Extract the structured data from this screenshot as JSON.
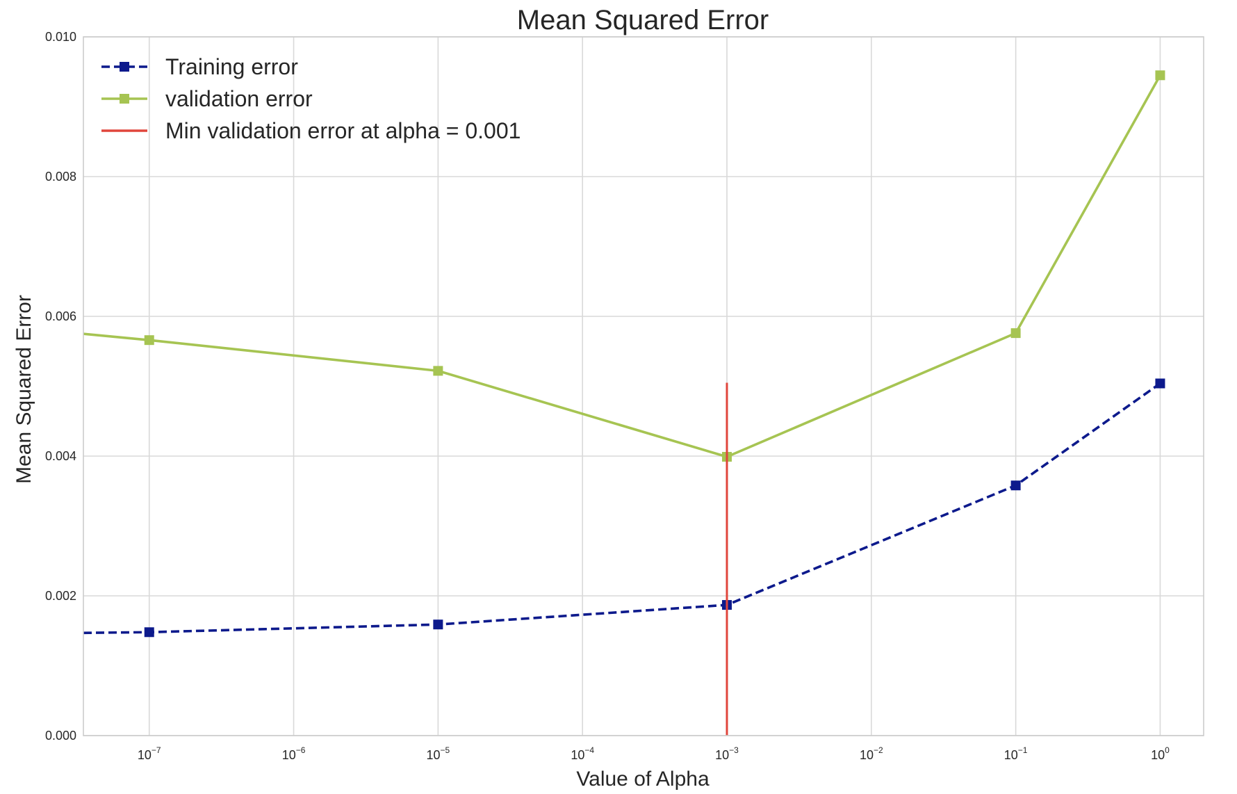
{
  "chart_data": {
    "type": "line",
    "title": "Mean Squared Error",
    "xlabel": "Value of Alpha",
    "ylabel": "Mean Squared Error",
    "xscale": "log",
    "xlim": [
      3.5e-08,
      2.0
    ],
    "ylim": [
      0.0,
      0.01
    ],
    "grid": true,
    "legend_position": "top-left",
    "x": [
      1e-07,
      1e-05,
      0.001,
      0.1,
      1
    ],
    "x_ticks": [
      {
        "value": 1e-07,
        "base": "10",
        "exp": "−7"
      },
      {
        "value": 1e-06,
        "base": "10",
        "exp": "−6"
      },
      {
        "value": 1e-05,
        "base": "10",
        "exp": "−5"
      },
      {
        "value": 0.0001,
        "base": "10",
        "exp": "−4"
      },
      {
        "value": 0.001,
        "base": "10",
        "exp": "−3"
      },
      {
        "value": 0.01,
        "base": "10",
        "exp": "−2"
      },
      {
        "value": 0.1,
        "base": "10",
        "exp": "−1"
      },
      {
        "value": 1,
        "base": "10",
        "exp": "0"
      }
    ],
    "y_ticks": [
      {
        "value": 0.0,
        "label": "0.000"
      },
      {
        "value": 0.002,
        "label": "0.002"
      },
      {
        "value": 0.004,
        "label": "0.004"
      },
      {
        "value": 0.006,
        "label": "0.006"
      },
      {
        "value": 0.008,
        "label": "0.008"
      },
      {
        "value": 0.01,
        "label": "0.010"
      }
    ],
    "series": [
      {
        "name": "Training error",
        "color": "#0d1a8c",
        "style": "dashed",
        "marker": "square",
        "values": [
          0.00148,
          0.00159,
          0.00187,
          0.00358,
          0.00504
        ],
        "extend_left_value": 0.00147
      },
      {
        "name": "validation error",
        "color": "#a6c452",
        "style": "solid",
        "marker": "square",
        "values": [
          0.00566,
          0.00522,
          0.00399,
          0.00576,
          0.00945
        ],
        "extend_left_value": 0.00575
      }
    ],
    "vline": {
      "name": "Min validation error at alpha = 0.001",
      "x": 0.001,
      "y_range": [
        0.0,
        0.00505
      ],
      "color": "#e0463c"
    }
  }
}
